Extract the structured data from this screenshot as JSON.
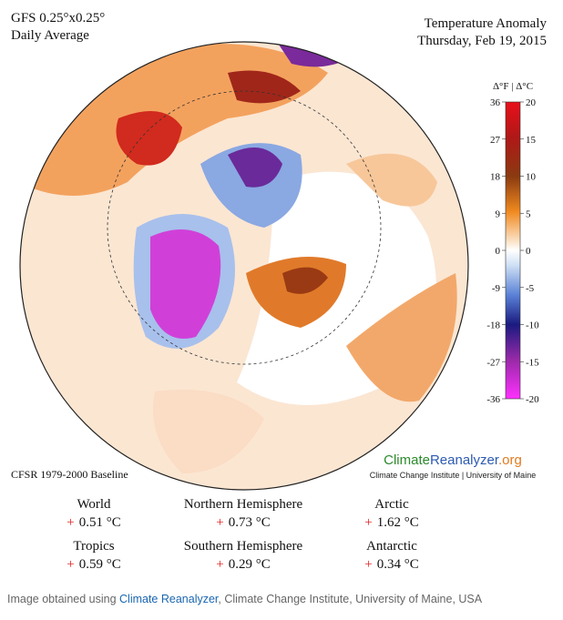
{
  "header": {
    "model": "GFS 0.25°x0.25°",
    "period": "Daily Average",
    "title": "Temperature Anomaly",
    "date": "Thursday, Feb 19, 2015"
  },
  "colorbar": {
    "label": "Δ°F | Δ°C",
    "f_ticks": [
      36,
      27,
      18,
      9,
      0,
      -9,
      -18,
      -27,
      -36
    ],
    "c_ticks": [
      20,
      15,
      10,
      5,
      0,
      -5,
      -10,
      -15,
      -20
    ]
  },
  "baseline": "CFSR 1979-2000 Baseline",
  "logo": {
    "climate": "Climate",
    "reanalyzer": "Reanalyzer",
    "org": ".org",
    "subtitle": "Climate Change Institute | University of Maine"
  },
  "stats": [
    {
      "region": "World",
      "sign": "+",
      "value": "0.51 °C"
    },
    {
      "region": "Northern Hemisphere",
      "sign": "+",
      "value": "0.73 °C"
    },
    {
      "region": "Arctic",
      "sign": "+",
      "value": "1.62 °C"
    },
    {
      "region": "Tropics",
      "sign": "+",
      "value": "0.59 °C"
    },
    {
      "region": "Southern Hemisphere",
      "sign": "+",
      "value": "0.29 °C"
    },
    {
      "region": "Antarctic",
      "sign": "+",
      "value": "0.34 °C"
    }
  ],
  "caption": {
    "prefix": "Image obtained using ",
    "link": "Climate Reanalyzer",
    "suffix": ", Climate Change Institute, University of Maine, USA"
  }
}
